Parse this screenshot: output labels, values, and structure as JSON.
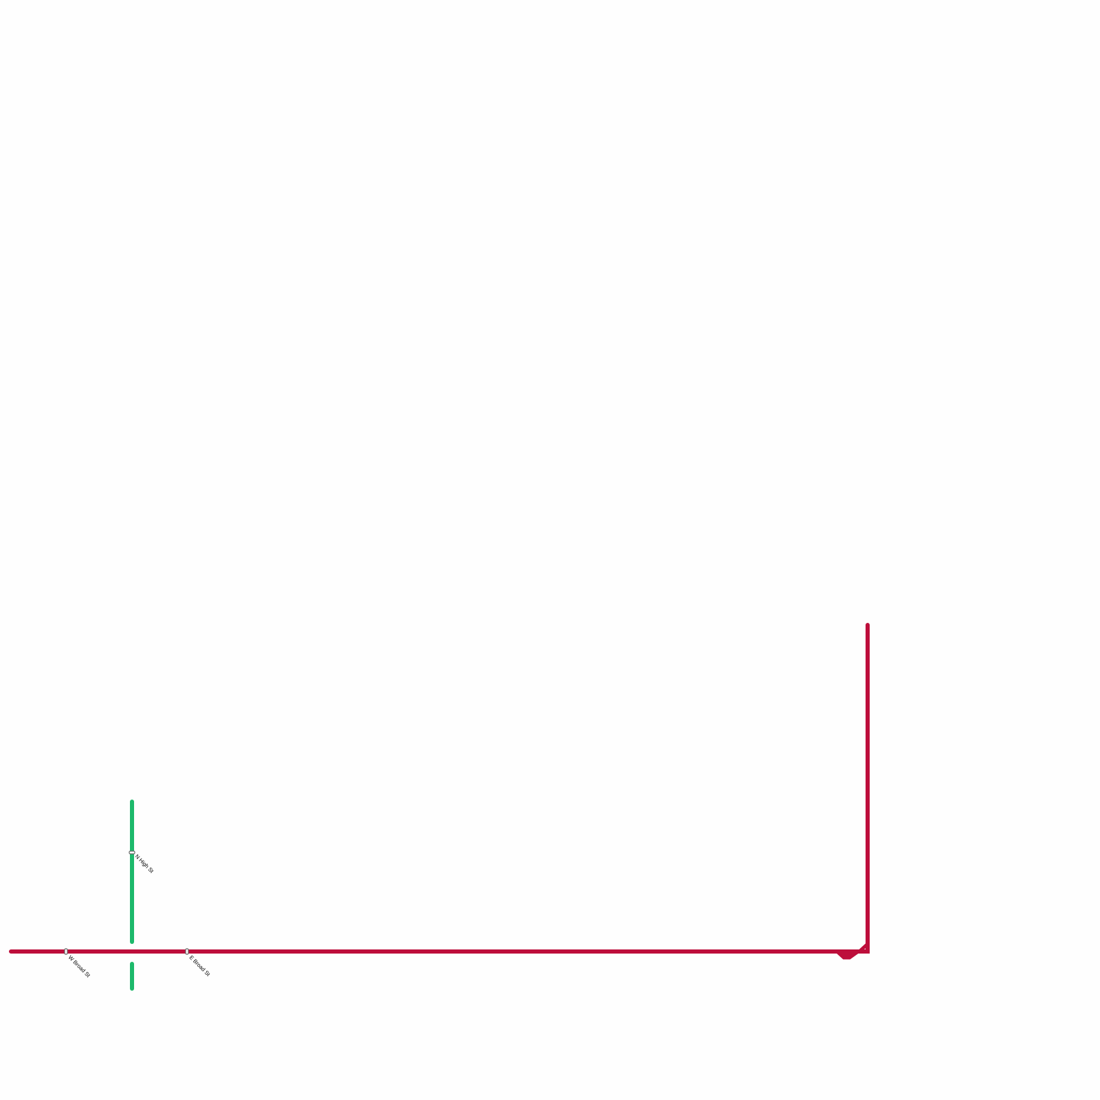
{
  "lines": [
    {
      "name": "red-line",
      "color": "#bd0e3b"
    },
    {
      "name": "green-line",
      "color": "#1db96b"
    }
  ],
  "stations": [
    {
      "label": "W Broad St",
      "line": "red-line"
    },
    {
      "label": "E Broad St",
      "line": "red-line"
    },
    {
      "label": "N High St",
      "line": "green-line"
    }
  ]
}
